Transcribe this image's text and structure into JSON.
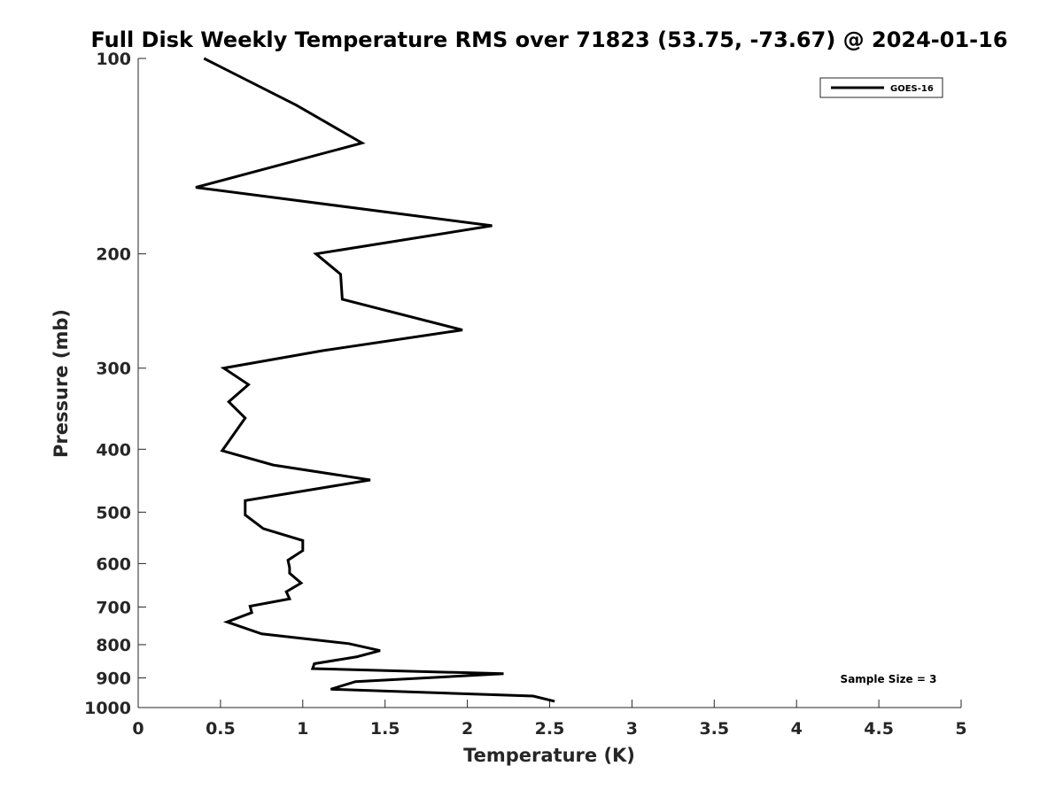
{
  "chart_data": {
    "type": "line",
    "title": "Full Disk Weekly Temperature RMS over 71823 (53.75, -73.67) @ 2024-01-16",
    "xlabel": "Temperature (K)",
    "ylabel": "Pressure (mb)",
    "xlim": [
      0,
      5
    ],
    "ylim": [
      100,
      1000
    ],
    "y_scale": "log",
    "y_reversed": true,
    "grid": false,
    "legend_position": "top-right",
    "x_ticks": [
      "0",
      "0.5",
      "1",
      "1.5",
      "2",
      "2.5",
      "3",
      "3.5",
      "4",
      "4.5",
      "5"
    ],
    "y_ticks": [
      "100",
      "200",
      "300",
      "400",
      "500",
      "600",
      "700",
      "800",
      "900",
      "1000"
    ],
    "series": [
      {
        "name": "GOES-16",
        "color": "#000000",
        "x": [
          0.4,
          0.96,
          1.36,
          0.35,
          2.15,
          1.08,
          1.23,
          1.24,
          1.97,
          1.12,
          0.52,
          0.67,
          0.55,
          0.65,
          0.51,
          0.82,
          1.41,
          0.65,
          0.65,
          0.76,
          1.0,
          1.0,
          0.91,
          0.92,
          0.92,
          0.99,
          0.9,
          0.92,
          0.68,
          0.69,
          0.54,
          0.75,
          1.28,
          1.47,
          1.33,
          1.07,
          1.06,
          2.22,
          1.32,
          1.17,
          2.4,
          2.53
        ],
        "y": [
          100,
          118,
          135,
          158,
          181,
          200,
          215,
          235,
          262,
          282,
          300,
          318,
          338,
          358,
          402,
          423,
          446,
          480,
          505,
          530,
          553,
          573,
          593,
          609,
          621,
          643,
          663,
          680,
          698,
          714,
          738,
          770,
          797,
          817,
          835,
          856,
          871,
          887,
          912,
          937,
          960,
          978
        ]
      }
    ],
    "annotations": [
      "Sample Size = 3"
    ]
  },
  "legend": {
    "label": "GOES-16"
  }
}
